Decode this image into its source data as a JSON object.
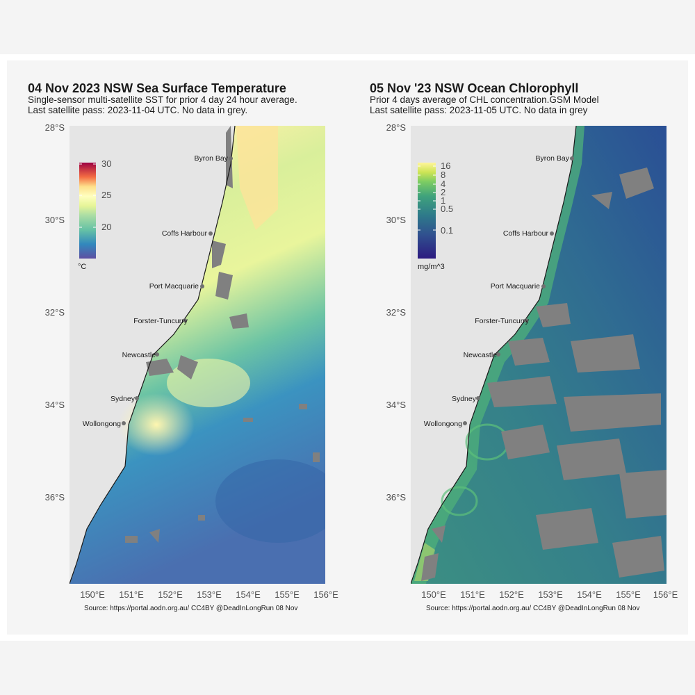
{
  "panels": [
    {
      "title": "04 Nov 2023 NSW Sea Surface Temperature",
      "subtitle1": "Single-sensor multi-satellite SST for prior 4 day 24 hour average.",
      "subtitle2": "Last satellite pass: 2023-11-04 UTC. No data in grey.",
      "legend_ticks": [
        "30",
        "25",
        "20"
      ],
      "legend_unit": "°C",
      "source": "Source: https://portal.aodn.org.au/ CC4BY @DeadInLongRun 08 Nov"
    },
    {
      "title": "05 Nov '23 NSW Ocean Chlorophyll",
      "subtitle1": "Prior 4 days average of CHL concentration.GSM Model",
      "subtitle2": "Last satellite pass: 2023-11-05 UTC. No data in grey",
      "legend_ticks": [
        "16",
        "8",
        "4",
        "2",
        "1",
        "0.5",
        "0.1"
      ],
      "legend_unit": "mg/m^3",
      "source": "Source: https://portal.aodn.org.au/ CC4BY @DeadInLongRun 08 Nov"
    }
  ],
  "y_ticks": [
    "28°S",
    "30°S",
    "32°S",
    "34°S",
    "36°S"
  ],
  "x_ticks": [
    "150°E",
    "151°E",
    "152°E",
    "153°E",
    "154°E",
    "155°E",
    "156°E"
  ],
  "cities": [
    "Byron Bay",
    "Coffs Harbour",
    "Port Macquarie",
    "Forster-Tuncurry",
    "Newcastle",
    "Sydney",
    "Wollongong"
  ],
  "colors": {
    "land": "#e5e5e5",
    "no_data": "#808080",
    "sst_scale": [
      "#5e4fa2",
      "#3288bd",
      "#66c2a5",
      "#abdda4",
      "#e6f598",
      "#ffffbf",
      "#fee08b",
      "#fdae61",
      "#f46d43",
      "#d53e4f",
      "#9e0142"
    ],
    "chl_scale": [
      "#2c1a80",
      "#30518f",
      "#2e7a8a",
      "#3fa27c",
      "#7ccc63",
      "#cde455",
      "#fff59a"
    ]
  }
}
